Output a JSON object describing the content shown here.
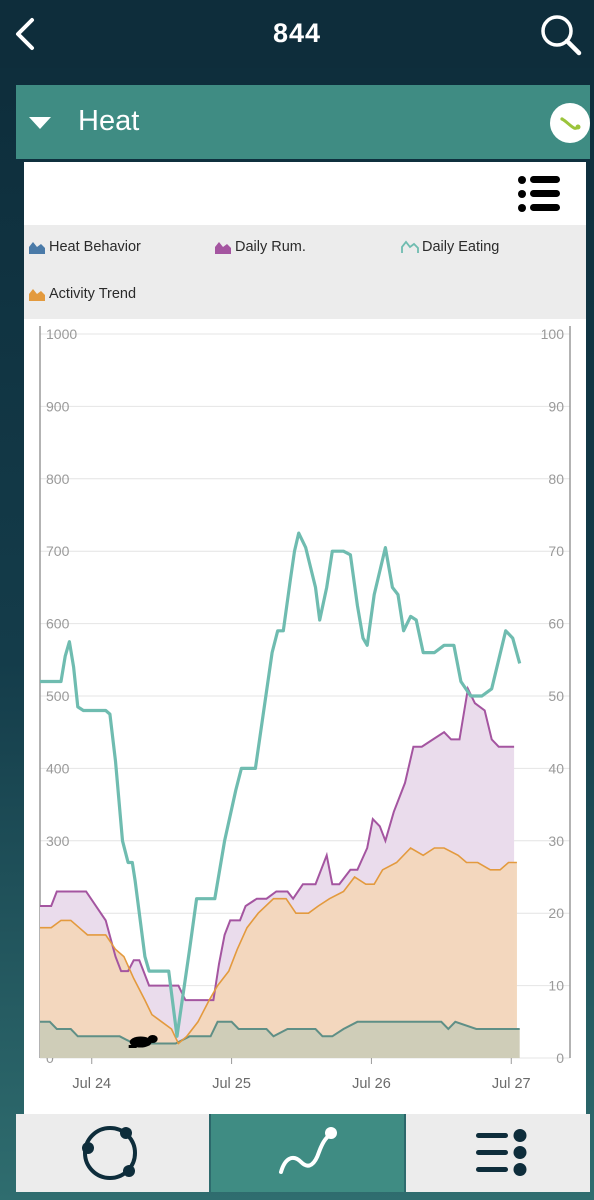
{
  "header": {
    "title": "844"
  },
  "card": {
    "title": "Heat"
  },
  "legend": [
    {
      "label": "Heat Behavior",
      "color": "#4a7aa8",
      "style": "filled"
    },
    {
      "label": "Daily Rum.",
      "color": "#a455a0",
      "style": "filled"
    },
    {
      "label": "Daily Eating",
      "color": "#6fbcb0",
      "style": "line"
    },
    {
      "label": "Activity Trend",
      "color": "#e39a3e",
      "style": "filled"
    }
  ],
  "chart_data": {
    "type": "line",
    "x_ticks": [
      {
        "label": "Jul 24",
        "day": 0
      },
      {
        "label": "Jul 25",
        "day": 1
      },
      {
        "label": "Jul 26",
        "day": 2
      },
      {
        "label": "Jul 27",
        "day": 3
      }
    ],
    "x_range_days": [
      -0.37,
      3.42
    ],
    "ylim_left": [
      0,
      1000
    ],
    "ylim_right": [
      0,
      100
    ],
    "y_ticks_left": [
      "0",
      "100",
      "200",
      "300",
      "400",
      "500",
      "600",
      "700",
      "800",
      "900",
      "1000"
    ],
    "y_ticks_right": [
      "0",
      "10",
      "20",
      "30",
      "40",
      "50",
      "60",
      "70",
      "80",
      "90",
      "100"
    ],
    "grid": true,
    "series": [
      {
        "name": "Daily Eating",
        "axis": "left",
        "style": "line",
        "color": "#6fbcb0",
        "points": [
          [
            -0.37,
            520
          ],
          [
            -0.27,
            520
          ],
          [
            -0.22,
            520
          ],
          [
            -0.19,
            555
          ],
          [
            -0.16,
            575
          ],
          [
            -0.13,
            540
          ],
          [
            -0.1,
            485
          ],
          [
            -0.06,
            480
          ],
          [
            0.0,
            480
          ],
          [
            0.1,
            480
          ],
          [
            0.13,
            475
          ],
          [
            0.17,
            410
          ],
          [
            0.22,
            300
          ],
          [
            0.26,
            270
          ],
          [
            0.29,
            270
          ],
          [
            0.31,
            245
          ],
          [
            0.38,
            140
          ],
          [
            0.41,
            120
          ],
          [
            0.5,
            120
          ],
          [
            0.55,
            120
          ],
          [
            0.61,
            30
          ],
          [
            0.7,
            150
          ],
          [
            0.75,
            220
          ],
          [
            0.88,
            220
          ],
          [
            0.95,
            300
          ],
          [
            1.03,
            370
          ],
          [
            1.07,
            400
          ],
          [
            1.17,
            400
          ],
          [
            1.29,
            560
          ],
          [
            1.33,
            590
          ],
          [
            1.37,
            590
          ],
          [
            1.42,
            660
          ],
          [
            1.45,
            700
          ],
          [
            1.48,
            725
          ],
          [
            1.53,
            705
          ],
          [
            1.6,
            650
          ],
          [
            1.63,
            605
          ],
          [
            1.68,
            650
          ],
          [
            1.72,
            700
          ],
          [
            1.8,
            700
          ],
          [
            1.85,
            695
          ],
          [
            1.9,
            625
          ],
          [
            1.94,
            580
          ],
          [
            1.97,
            570
          ],
          [
            2.02,
            640
          ],
          [
            2.1,
            705
          ],
          [
            2.15,
            650
          ],
          [
            2.19,
            640
          ],
          [
            2.23,
            590
          ],
          [
            2.28,
            610
          ],
          [
            2.32,
            605
          ],
          [
            2.37,
            560
          ],
          [
            2.45,
            560
          ],
          [
            2.52,
            570
          ],
          [
            2.59,
            570
          ],
          [
            2.64,
            520
          ],
          [
            2.71,
            500
          ],
          [
            2.79,
            500
          ],
          [
            2.86,
            510
          ],
          [
            2.96,
            590
          ],
          [
            3.01,
            580
          ],
          [
            3.06,
            545
          ]
        ]
      },
      {
        "name": "Daily Rum.",
        "axis": "right",
        "style": "area",
        "color": "#a455a0",
        "points": [
          [
            -0.37,
            21
          ],
          [
            -0.29,
            21
          ],
          [
            -0.25,
            23
          ],
          [
            -0.2,
            23
          ],
          [
            -0.1,
            23
          ],
          [
            -0.04,
            23
          ],
          [
            0.1,
            19
          ],
          [
            0.17,
            14
          ],
          [
            0.21,
            12
          ],
          [
            0.26,
            12
          ],
          [
            0.3,
            13.5
          ],
          [
            0.34,
            13.5
          ],
          [
            0.41,
            10
          ],
          [
            0.51,
            10
          ],
          [
            0.62,
            10
          ],
          [
            0.67,
            8
          ],
          [
            0.7,
            8
          ],
          [
            0.75,
            8
          ],
          [
            0.82,
            8
          ],
          [
            0.87,
            8
          ],
          [
            0.91,
            13
          ],
          [
            0.95,
            17
          ],
          [
            0.99,
            19
          ],
          [
            1.06,
            19
          ],
          [
            1.1,
            21
          ],
          [
            1.18,
            22
          ],
          [
            1.25,
            22
          ],
          [
            1.32,
            23
          ],
          [
            1.4,
            23
          ],
          [
            1.44,
            22
          ],
          [
            1.51,
            24
          ],
          [
            1.6,
            24
          ],
          [
            1.68,
            28
          ],
          [
            1.72,
            24
          ],
          [
            1.77,
            24
          ],
          [
            1.85,
            26
          ],
          [
            1.9,
            26
          ],
          [
            1.97,
            29
          ],
          [
            2.01,
            33
          ],
          [
            2.06,
            32
          ],
          [
            2.1,
            30
          ],
          [
            2.16,
            34
          ],
          [
            2.24,
            38
          ],
          [
            2.3,
            43
          ],
          [
            2.36,
            43
          ],
          [
            2.44,
            44
          ],
          [
            2.52,
            45
          ],
          [
            2.57,
            44
          ],
          [
            2.63,
            44
          ],
          [
            2.69,
            51
          ],
          [
            2.74,
            49
          ],
          [
            2.81,
            48
          ],
          [
            2.86,
            44
          ],
          [
            2.91,
            43
          ],
          [
            2.97,
            43
          ],
          [
            3.02,
            43
          ]
        ]
      },
      {
        "name": "Activity Trend",
        "axis": "right",
        "style": "area",
        "color": "#e39a3e",
        "points": [
          [
            -0.37,
            18
          ],
          [
            -0.29,
            18
          ],
          [
            -0.22,
            19
          ],
          [
            -0.15,
            19
          ],
          [
            -0.09,
            18
          ],
          [
            -0.03,
            17
          ],
          [
            0.1,
            17
          ],
          [
            0.17,
            15
          ],
          [
            0.23,
            14
          ],
          [
            0.3,
            11
          ],
          [
            0.38,
            8
          ],
          [
            0.43,
            6
          ],
          [
            0.5,
            5
          ],
          [
            0.57,
            4
          ],
          [
            0.62,
            2
          ],
          [
            0.68,
            3
          ],
          [
            0.76,
            5
          ],
          [
            0.84,
            8
          ],
          [
            0.9,
            10
          ],
          [
            0.98,
            12
          ],
          [
            1.04,
            15
          ],
          [
            1.11,
            18
          ],
          [
            1.19,
            20
          ],
          [
            1.3,
            22
          ],
          [
            1.39,
            22
          ],
          [
            1.46,
            20
          ],
          [
            1.55,
            20
          ],
          [
            1.62,
            21
          ],
          [
            1.7,
            22
          ],
          [
            1.8,
            23
          ],
          [
            1.88,
            25
          ],
          [
            1.96,
            24
          ],
          [
            2.02,
            24
          ],
          [
            2.08,
            26
          ],
          [
            2.18,
            27
          ],
          [
            2.28,
            29
          ],
          [
            2.37,
            28
          ],
          [
            2.45,
            29
          ],
          [
            2.52,
            29
          ],
          [
            2.62,
            28
          ],
          [
            2.68,
            27
          ],
          [
            2.76,
            27
          ],
          [
            2.85,
            26
          ],
          [
            2.92,
            26
          ],
          [
            2.98,
            27
          ],
          [
            3.04,
            27
          ]
        ]
      },
      {
        "name": "Heat Behavior",
        "axis": "left",
        "style": "area",
        "color": "#4a7aa8",
        "points": [
          [
            -0.37,
            50
          ],
          [
            -0.3,
            50
          ],
          [
            -0.25,
            40
          ],
          [
            -0.15,
            40
          ],
          [
            -0.1,
            30
          ],
          [
            0.2,
            30
          ],
          [
            0.3,
            20
          ],
          [
            0.6,
            20
          ],
          [
            0.7,
            30
          ],
          [
            0.85,
            30
          ],
          [
            0.9,
            50
          ],
          [
            1.0,
            50
          ],
          [
            1.05,
            40
          ],
          [
            1.25,
            40
          ],
          [
            1.3,
            30
          ],
          [
            1.4,
            40
          ],
          [
            1.6,
            40
          ],
          [
            1.65,
            30
          ],
          [
            1.72,
            30
          ],
          [
            1.8,
            40
          ],
          [
            1.9,
            50
          ],
          [
            2.5,
            50
          ],
          [
            2.55,
            40
          ],
          [
            2.6,
            50
          ],
          [
            2.75,
            40
          ],
          [
            2.9,
            40
          ],
          [
            3.06,
            40
          ]
        ]
      }
    ]
  },
  "bottom_nav": [
    {
      "name": "overview",
      "icon": "cycle-icon"
    },
    {
      "name": "graph",
      "icon": "graph-icon",
      "active": true
    },
    {
      "name": "list",
      "icon": "list-icon"
    }
  ]
}
